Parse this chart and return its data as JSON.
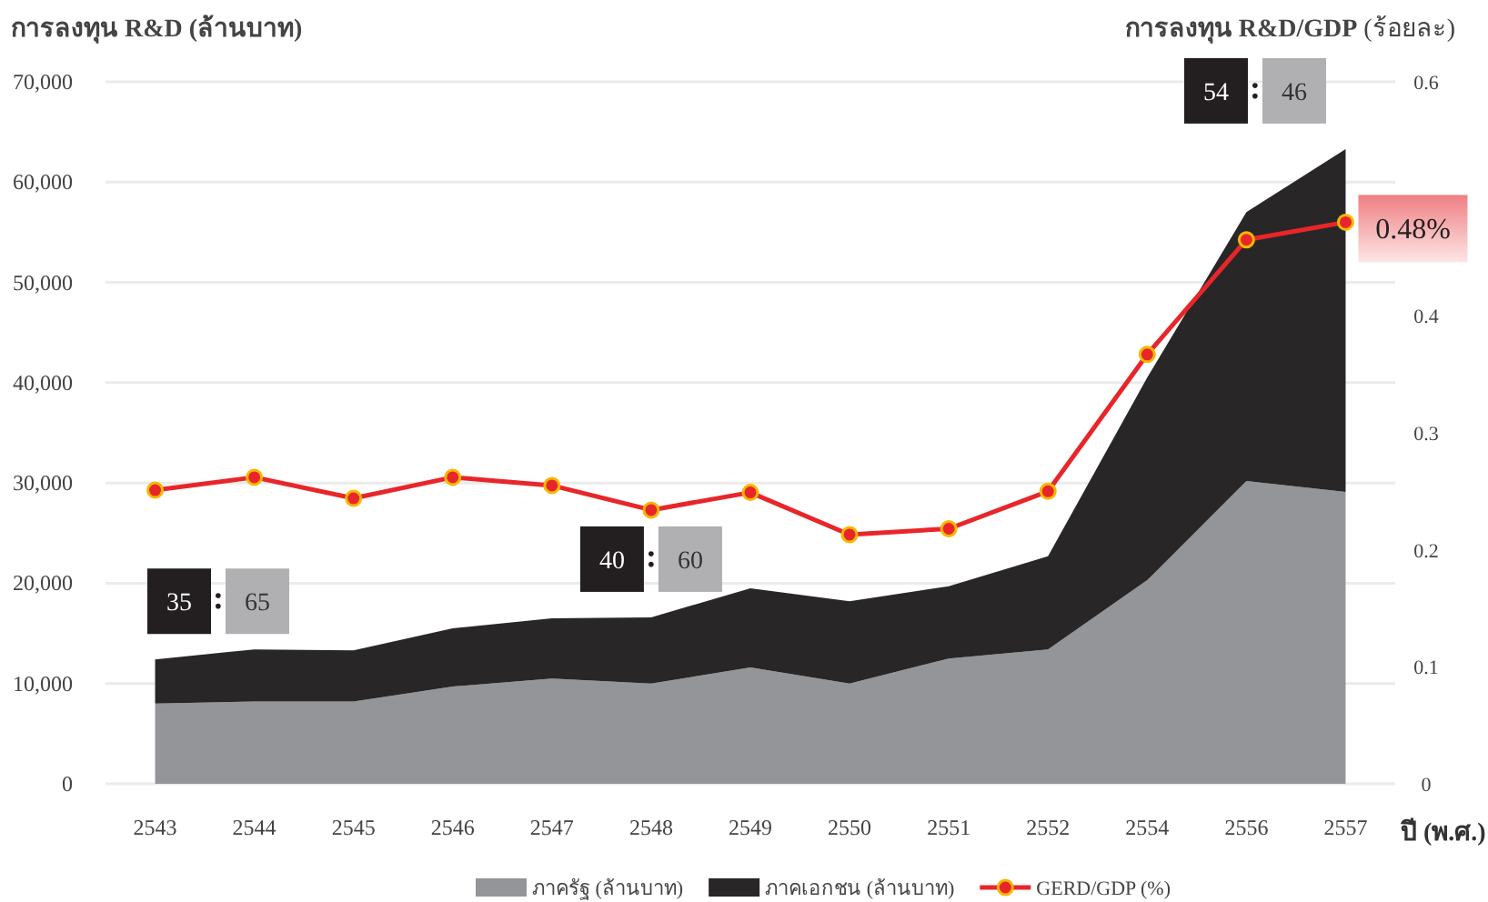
{
  "chart_data": {
    "type": "area",
    "stacked": true,
    "ylabel": "การลงทุน R&D (ล้านบาท)",
    "y2label": "**การลงทุน R&D/GDP**  (ร้อยละ)",
    "xlabel": "ปี (พ.ศ.)",
    "categories": [
      "2543",
      "2544",
      "2545",
      "2546",
      "2547",
      "2548",
      "2549",
      "2550",
      "2551",
      "2552",
      "2554",
      "2556",
      "2557"
    ],
    "series": [
      {
        "name": "ภาครัฐ (ล้านบาท)",
        "color": "#939598",
        "values": [
          8000,
          8200,
          8200,
          9700,
          10500,
          10000,
          11600,
          10000,
          12500,
          13400,
          20300,
          30200,
          29100
        ]
      },
      {
        "name": "ภาคเอกชน (ล้านบาท)",
        "color": "#282627",
        "values": [
          4400,
          5200,
          5100,
          5800,
          6000,
          6600,
          7900,
          8200,
          7200,
          9300,
          20200,
          26800,
          34200
        ]
      },
      {
        "name": "GERD/GDP (%)",
        "type": "line",
        "axis": "y2",
        "color": "#e8262a",
        "marker": "circle",
        "values": [
          0.251,
          0.262,
          0.244,
          0.262,
          0.255,
          0.234,
          0.249,
          0.213,
          0.218,
          0.25,
          0.367,
          0.465,
          0.48
        ]
      }
    ],
    "ylim": [
      0,
      70000
    ],
    "yticks": [
      0,
      {
        "value": 10000,
        "label": "10,000"
      },
      {
        "value": 20000,
        "label": "20,000"
      },
      {
        "value": 30000,
        "label": "30,000"
      },
      {
        "value": 40000,
        "label": "40,000"
      },
      {
        "value": 50000,
        "label": "50,000"
      },
      {
        "value": 60000,
        "label": "60,000"
      },
      {
        "value": 70000,
        "label": "70,000"
      }
    ],
    "y2lim": [
      0,
      0.6
    ],
    "y2ticks": [
      0,
      0.1,
      0.2,
      0.3,
      0.4,
      0.6
    ],
    "grid": "y",
    "legend": "bottom",
    "annotations": [
      "35",
      ":",
      "65",
      "40",
      ":",
      "60",
      "54",
      ":",
      "46",
      "0.48%"
    ]
  }
}
